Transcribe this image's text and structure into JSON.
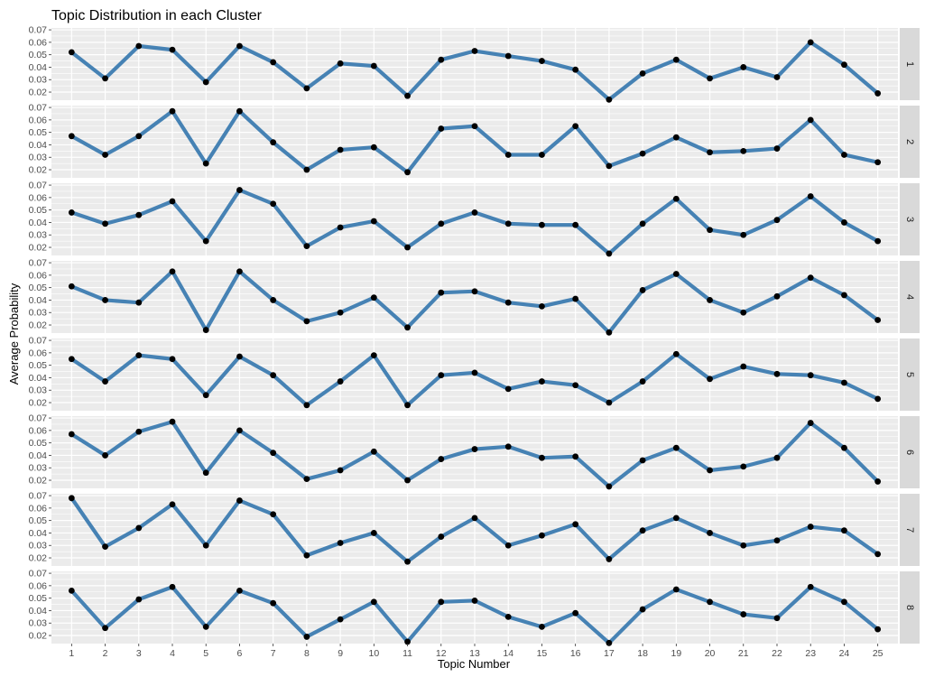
{
  "chart_data": {
    "type": "line",
    "title": "Topic Distribution in each Cluster",
    "xlabel": "Topic Number",
    "ylabel": "Average Probability",
    "x": [
      1,
      2,
      3,
      4,
      5,
      6,
      7,
      8,
      9,
      10,
      11,
      12,
      13,
      14,
      15,
      16,
      17,
      18,
      19,
      20,
      21,
      22,
      23,
      24,
      25
    ],
    "y_ticks": [
      0.02,
      0.03,
      0.04,
      0.05,
      0.06,
      0.07
    ],
    "y_tick_labels": [
      "0.02",
      "0.03",
      "0.04",
      "0.05",
      "0.06",
      "0.07"
    ],
    "ylim": [
      0.0135,
      0.0715
    ],
    "xlim": [
      0.4,
      25.6
    ],
    "grid": true,
    "line_color": "#4682b4",
    "point_color": "#000000",
    "panel_background": "#ebebeb",
    "strip_background": "#d9d9d9",
    "facets": [
      {
        "name": "1",
        "values": [
          0.052,
          0.031,
          0.057,
          0.054,
          0.028,
          0.057,
          0.044,
          0.023,
          0.043,
          0.041,
          0.017,
          0.046,
          0.053,
          0.049,
          0.045,
          0.038,
          0.014,
          0.035,
          0.046,
          0.031,
          0.04,
          0.032,
          0.06,
          0.042,
          0.019
        ]
      },
      {
        "name": "2",
        "values": [
          0.047,
          0.032,
          0.047,
          0.067,
          0.025,
          0.067,
          0.042,
          0.02,
          0.036,
          0.038,
          0.018,
          0.053,
          0.055,
          0.032,
          0.032,
          0.055,
          0.023,
          0.033,
          0.046,
          0.034,
          0.035,
          0.037,
          0.06,
          0.032,
          0.026
        ]
      },
      {
        "name": "3",
        "values": [
          0.048,
          0.039,
          0.046,
          0.057,
          0.025,
          0.066,
          0.055,
          0.021,
          0.036,
          0.041,
          0.02,
          0.039,
          0.048,
          0.039,
          0.038,
          0.038,
          0.015,
          0.039,
          0.059,
          0.034,
          0.03,
          0.042,
          0.061,
          0.04,
          0.025
        ]
      },
      {
        "name": "4",
        "values": [
          0.051,
          0.04,
          0.038,
          0.063,
          0.016,
          0.063,
          0.04,
          0.023,
          0.03,
          0.042,
          0.018,
          0.046,
          0.047,
          0.038,
          0.035,
          0.041,
          0.014,
          0.048,
          0.061,
          0.04,
          0.03,
          0.043,
          0.058,
          0.044,
          0.024
        ]
      },
      {
        "name": "5",
        "values": [
          0.055,
          0.037,
          0.058,
          0.055,
          0.026,
          0.057,
          0.042,
          0.018,
          0.037,
          0.058,
          0.018,
          0.042,
          0.044,
          0.031,
          0.037,
          0.034,
          0.02,
          0.037,
          0.059,
          0.039,
          0.049,
          0.043,
          0.042,
          0.036,
          0.023
        ]
      },
      {
        "name": "6",
        "values": [
          0.057,
          0.04,
          0.059,
          0.067,
          0.026,
          0.06,
          0.042,
          0.021,
          0.028,
          0.043,
          0.02,
          0.037,
          0.045,
          0.047,
          0.038,
          0.039,
          0.015,
          0.036,
          0.046,
          0.028,
          0.031,
          0.038,
          0.066,
          0.046,
          0.019
        ]
      },
      {
        "name": "7",
        "values": [
          0.068,
          0.029,
          0.044,
          0.063,
          0.03,
          0.066,
          0.055,
          0.022,
          0.032,
          0.04,
          0.017,
          0.037,
          0.052,
          0.03,
          0.038,
          0.047,
          0.019,
          0.042,
          0.052,
          0.04,
          0.03,
          0.034,
          0.045,
          0.042,
          0.023
        ]
      },
      {
        "name": "8",
        "values": [
          0.056,
          0.026,
          0.049,
          0.059,
          0.027,
          0.056,
          0.046,
          0.019,
          0.033,
          0.047,
          0.015,
          0.047,
          0.048,
          0.035,
          0.027,
          0.038,
          0.014,
          0.041,
          0.057,
          0.047,
          0.037,
          0.034,
          0.059,
          0.047,
          0.025
        ]
      }
    ]
  }
}
